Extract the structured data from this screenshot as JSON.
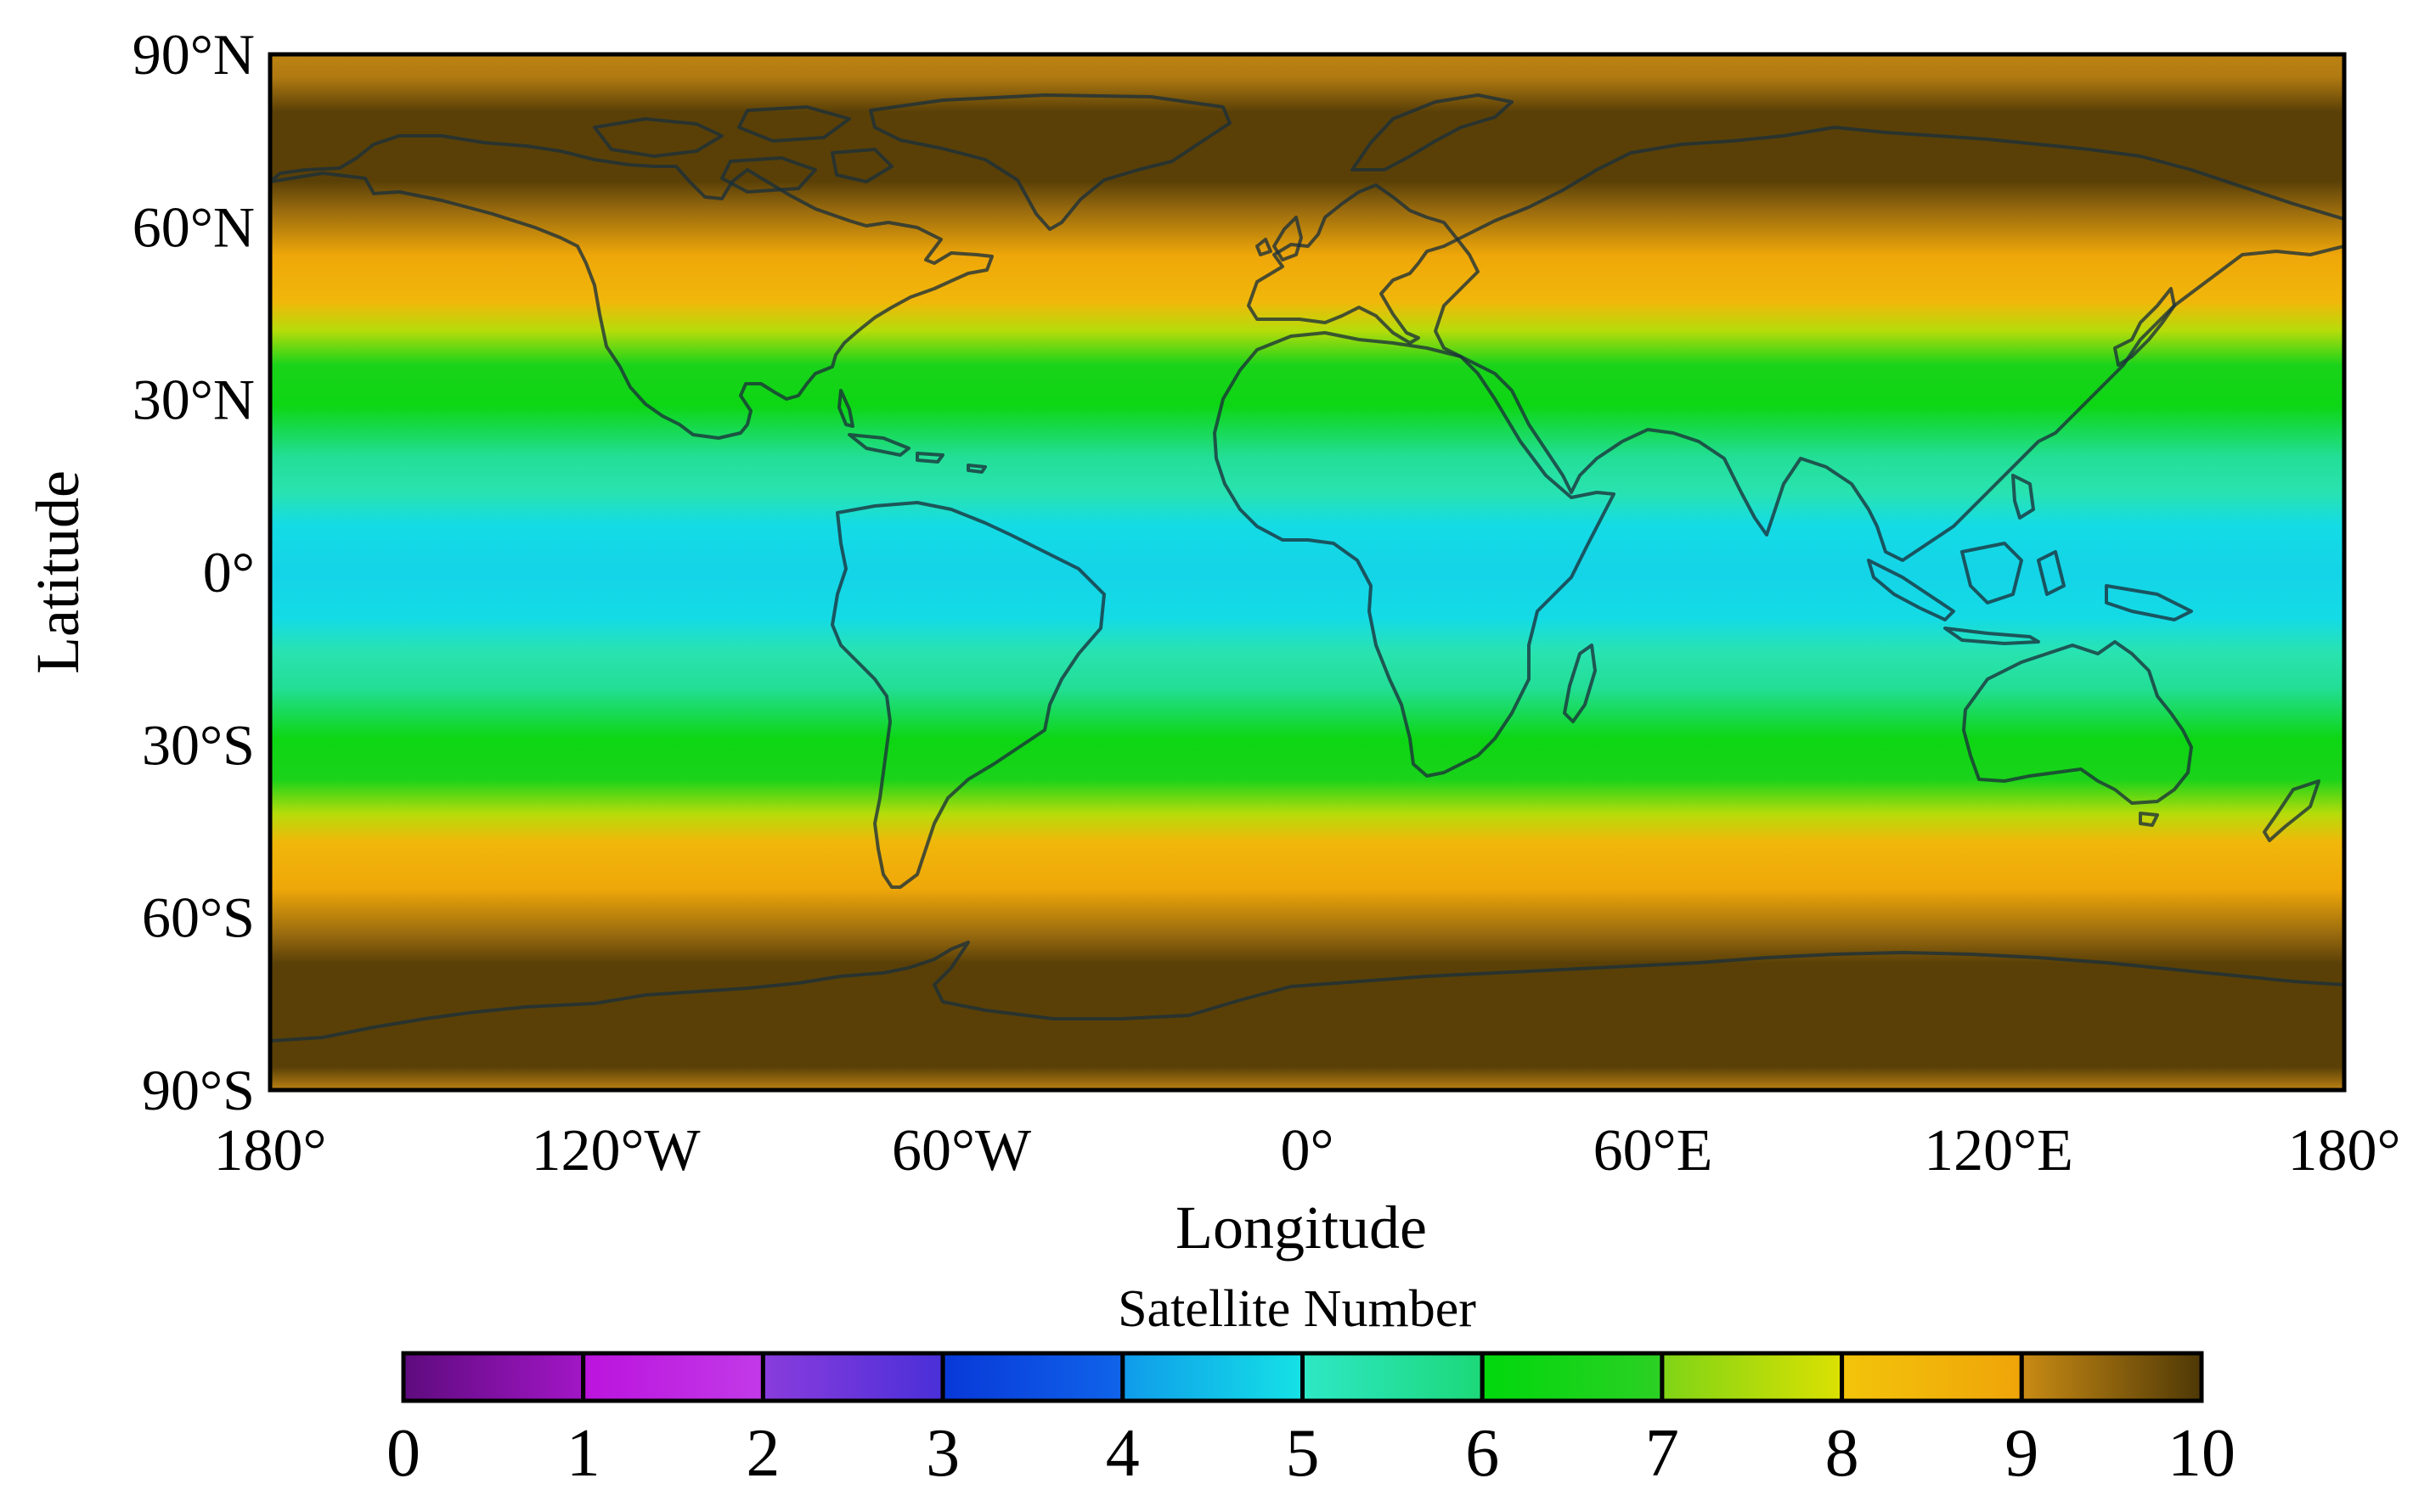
{
  "map": {
    "projection": "equirectangular",
    "extent": {
      "lon": [
        -180,
        180
      ],
      "lat": [
        -90,
        90
      ]
    },
    "x_axis": {
      "label": "Longitude",
      "ticks": [
        {
          "value": -180,
          "label": "180°"
        },
        {
          "value": -120,
          "label": "120°W"
        },
        {
          "value": -60,
          "label": "60°W"
        },
        {
          "value": 0,
          "label": "0°"
        },
        {
          "value": 60,
          "label": "60°E"
        },
        {
          "value": 120,
          "label": "120°E"
        },
        {
          "value": 180,
          "label": "180°"
        }
      ]
    },
    "y_axis": {
      "label": "Latitude",
      "ticks": [
        {
          "value": 90,
          "label": "90°N"
        },
        {
          "value": 60,
          "label": "60°N"
        },
        {
          "value": 30,
          "label": "30°N"
        },
        {
          "value": 0,
          "label": "0°"
        },
        {
          "value": -30,
          "label": "30°S"
        },
        {
          "value": -60,
          "label": "60°S"
        },
        {
          "value": -90,
          "label": "90°S"
        }
      ]
    },
    "field": {
      "variable": "Satellite Number",
      "latitude_profile": [
        {
          "lat": 90,
          "value": 9.1
        },
        {
          "lat": 86,
          "value": 9.2
        },
        {
          "lat": 80,
          "value": 9.9
        },
        {
          "lat": 68,
          "value": 9.9
        },
        {
          "lat": 63,
          "value": 9.4
        },
        {
          "lat": 55,
          "value": 8.9
        },
        {
          "lat": 47,
          "value": 8.4
        },
        {
          "lat": 42,
          "value": 7.6
        },
        {
          "lat": 36,
          "value": 6.6
        },
        {
          "lat": 29,
          "value": 6.3
        },
        {
          "lat": 20,
          "value": 5.6
        },
        {
          "lat": 14,
          "value": 5.3
        },
        {
          "lat": 8,
          "value": 4.9
        },
        {
          "lat": 0,
          "value": 4.8
        },
        {
          "lat": -8,
          "value": 4.9
        },
        {
          "lat": -14,
          "value": 5.3
        },
        {
          "lat": -20,
          "value": 5.6
        },
        {
          "lat": -29,
          "value": 6.3
        },
        {
          "lat": -36,
          "value": 6.6
        },
        {
          "lat": -42,
          "value": 7.6
        },
        {
          "lat": -47,
          "value": 8.4
        },
        {
          "lat": -55,
          "value": 8.9
        },
        {
          "lat": -63,
          "value": 9.4
        },
        {
          "lat": -68,
          "value": 9.9
        },
        {
          "lat": -86,
          "value": 9.9
        },
        {
          "lat": -90,
          "value": 9.1
        }
      ]
    },
    "coastline_color": "#1b2f3a"
  },
  "colorbar": {
    "title": "Satellite Number",
    "min": 0,
    "max": 10,
    "tick_labels": [
      "0",
      "1",
      "2",
      "3",
      "4",
      "5",
      "6",
      "7",
      "8",
      "9",
      "10"
    ],
    "segments": [
      {
        "from": "#5e0b7e",
        "to": "#a216c6"
      },
      {
        "from": "#bb13dd",
        "to": "#c23ae8"
      },
      {
        "from": "#8a3cdd",
        "to": "#4a2fd8"
      },
      {
        "from": "#0838d8",
        "to": "#1064ea"
      },
      {
        "from": "#0f9bea",
        "to": "#15e2e6"
      },
      {
        "from": "#2ee8c6",
        "to": "#1cd878"
      },
      {
        "from": "#00d80c",
        "to": "#2cd024"
      },
      {
        "from": "#7fd416",
        "to": "#dbe102"
      },
      {
        "from": "#f3c40a",
        "to": "#efa409"
      },
      {
        "from": "#c98b14",
        "to": "#4e3806"
      }
    ]
  }
}
